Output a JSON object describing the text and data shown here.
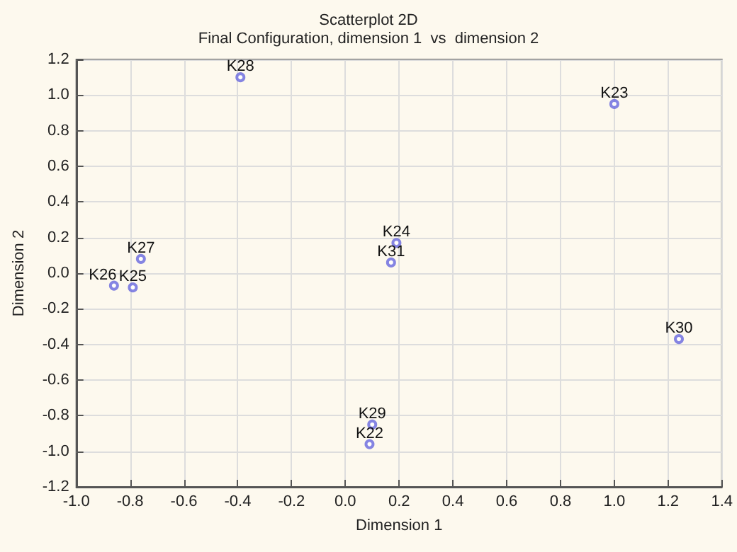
{
  "chart_data": {
    "type": "scatter",
    "title": "Scatterplot 2D",
    "subtitle": "Final Configuration, dimension 1  vs  dimension 2",
    "xlabel": "Dimension 1",
    "ylabel": "Dimension 2",
    "x": [
      -0.39,
      1.0,
      0.19,
      0.17,
      -0.76,
      -0.86,
      -0.79,
      1.24,
      0.1,
      0.09
    ],
    "values": [
      1.1,
      0.95,
      0.17,
      0.06,
      0.08,
      -0.07,
      -0.08,
      -0.37,
      -0.85,
      -0.96
    ],
    "color": "#6666dd",
    "marker": "circle",
    "grid": true,
    "xlim": [
      -1.0,
      1.4
    ],
    "xticks": [
      {
        "value": -1.0,
        "label": "-1.0"
      },
      {
        "value": -0.8,
        "label": "-0.8"
      },
      {
        "value": -0.6,
        "label": "-0.6"
      },
      {
        "value": -0.4,
        "label": "-0.4"
      },
      {
        "value": -0.2,
        "label": "-0.2"
      },
      {
        "value": 0,
        "label": "0.0"
      },
      {
        "value": 0.2,
        "label": "0.2"
      },
      {
        "value": 0.4,
        "label": "0.4"
      },
      {
        "value": 0.6,
        "label": "0.6"
      },
      {
        "value": 0.8,
        "label": "0.8"
      },
      {
        "value": 1.0,
        "label": "1.0"
      },
      {
        "value": 1.2,
        "label": "1.2"
      },
      {
        "value": 1.4,
        "label": "1.4"
      }
    ],
    "ylim": [
      -1.2,
      1.2
    ],
    "yticks": [
      {
        "value": -1.2,
        "label": "-1.2"
      },
      {
        "value": -1.0,
        "label": "-1.0"
      },
      {
        "value": -0.8,
        "label": "-0.8"
      },
      {
        "value": -0.6,
        "label": "-0.6"
      },
      {
        "value": -0.4,
        "label": "-0.4"
      },
      {
        "value": -0.2,
        "label": "-0.2"
      },
      {
        "value": 0,
        "label": "0.0"
      },
      {
        "value": 0.2,
        "label": "0.2"
      },
      {
        "value": 0.4,
        "label": "0.4"
      },
      {
        "value": 0.6,
        "label": "0.6"
      },
      {
        "value": 0.8,
        "label": "0.8"
      },
      {
        "value": 1.0,
        "label": "1.0"
      },
      {
        "value": 1.2,
        "label": "1.2"
      }
    ],
    "annotations": [
      {
        "text": "K28",
        "x": -0.39,
        "y": 1.1
      },
      {
        "text": "K23",
        "x": 1.0,
        "y": 0.95
      },
      {
        "text": "K24",
        "x": 0.19,
        "y": 0.17
      },
      {
        "text": "K31",
        "x": 0.17,
        "y": 0.06
      },
      {
        "text": "K27",
        "x": -0.76,
        "y": 0.08
      },
      {
        "text": "K26",
        "x": -0.86,
        "y": -0.07
      },
      {
        "text": "K25",
        "x": -0.79,
        "y": -0.08
      },
      {
        "text": "K30",
        "x": 1.24,
        "y": -0.37
      },
      {
        "text": "K29",
        "x": 0.1,
        "y": -0.85
      },
      {
        "text": "K22",
        "x": 0.09,
        "y": -0.96
      }
    ]
  }
}
